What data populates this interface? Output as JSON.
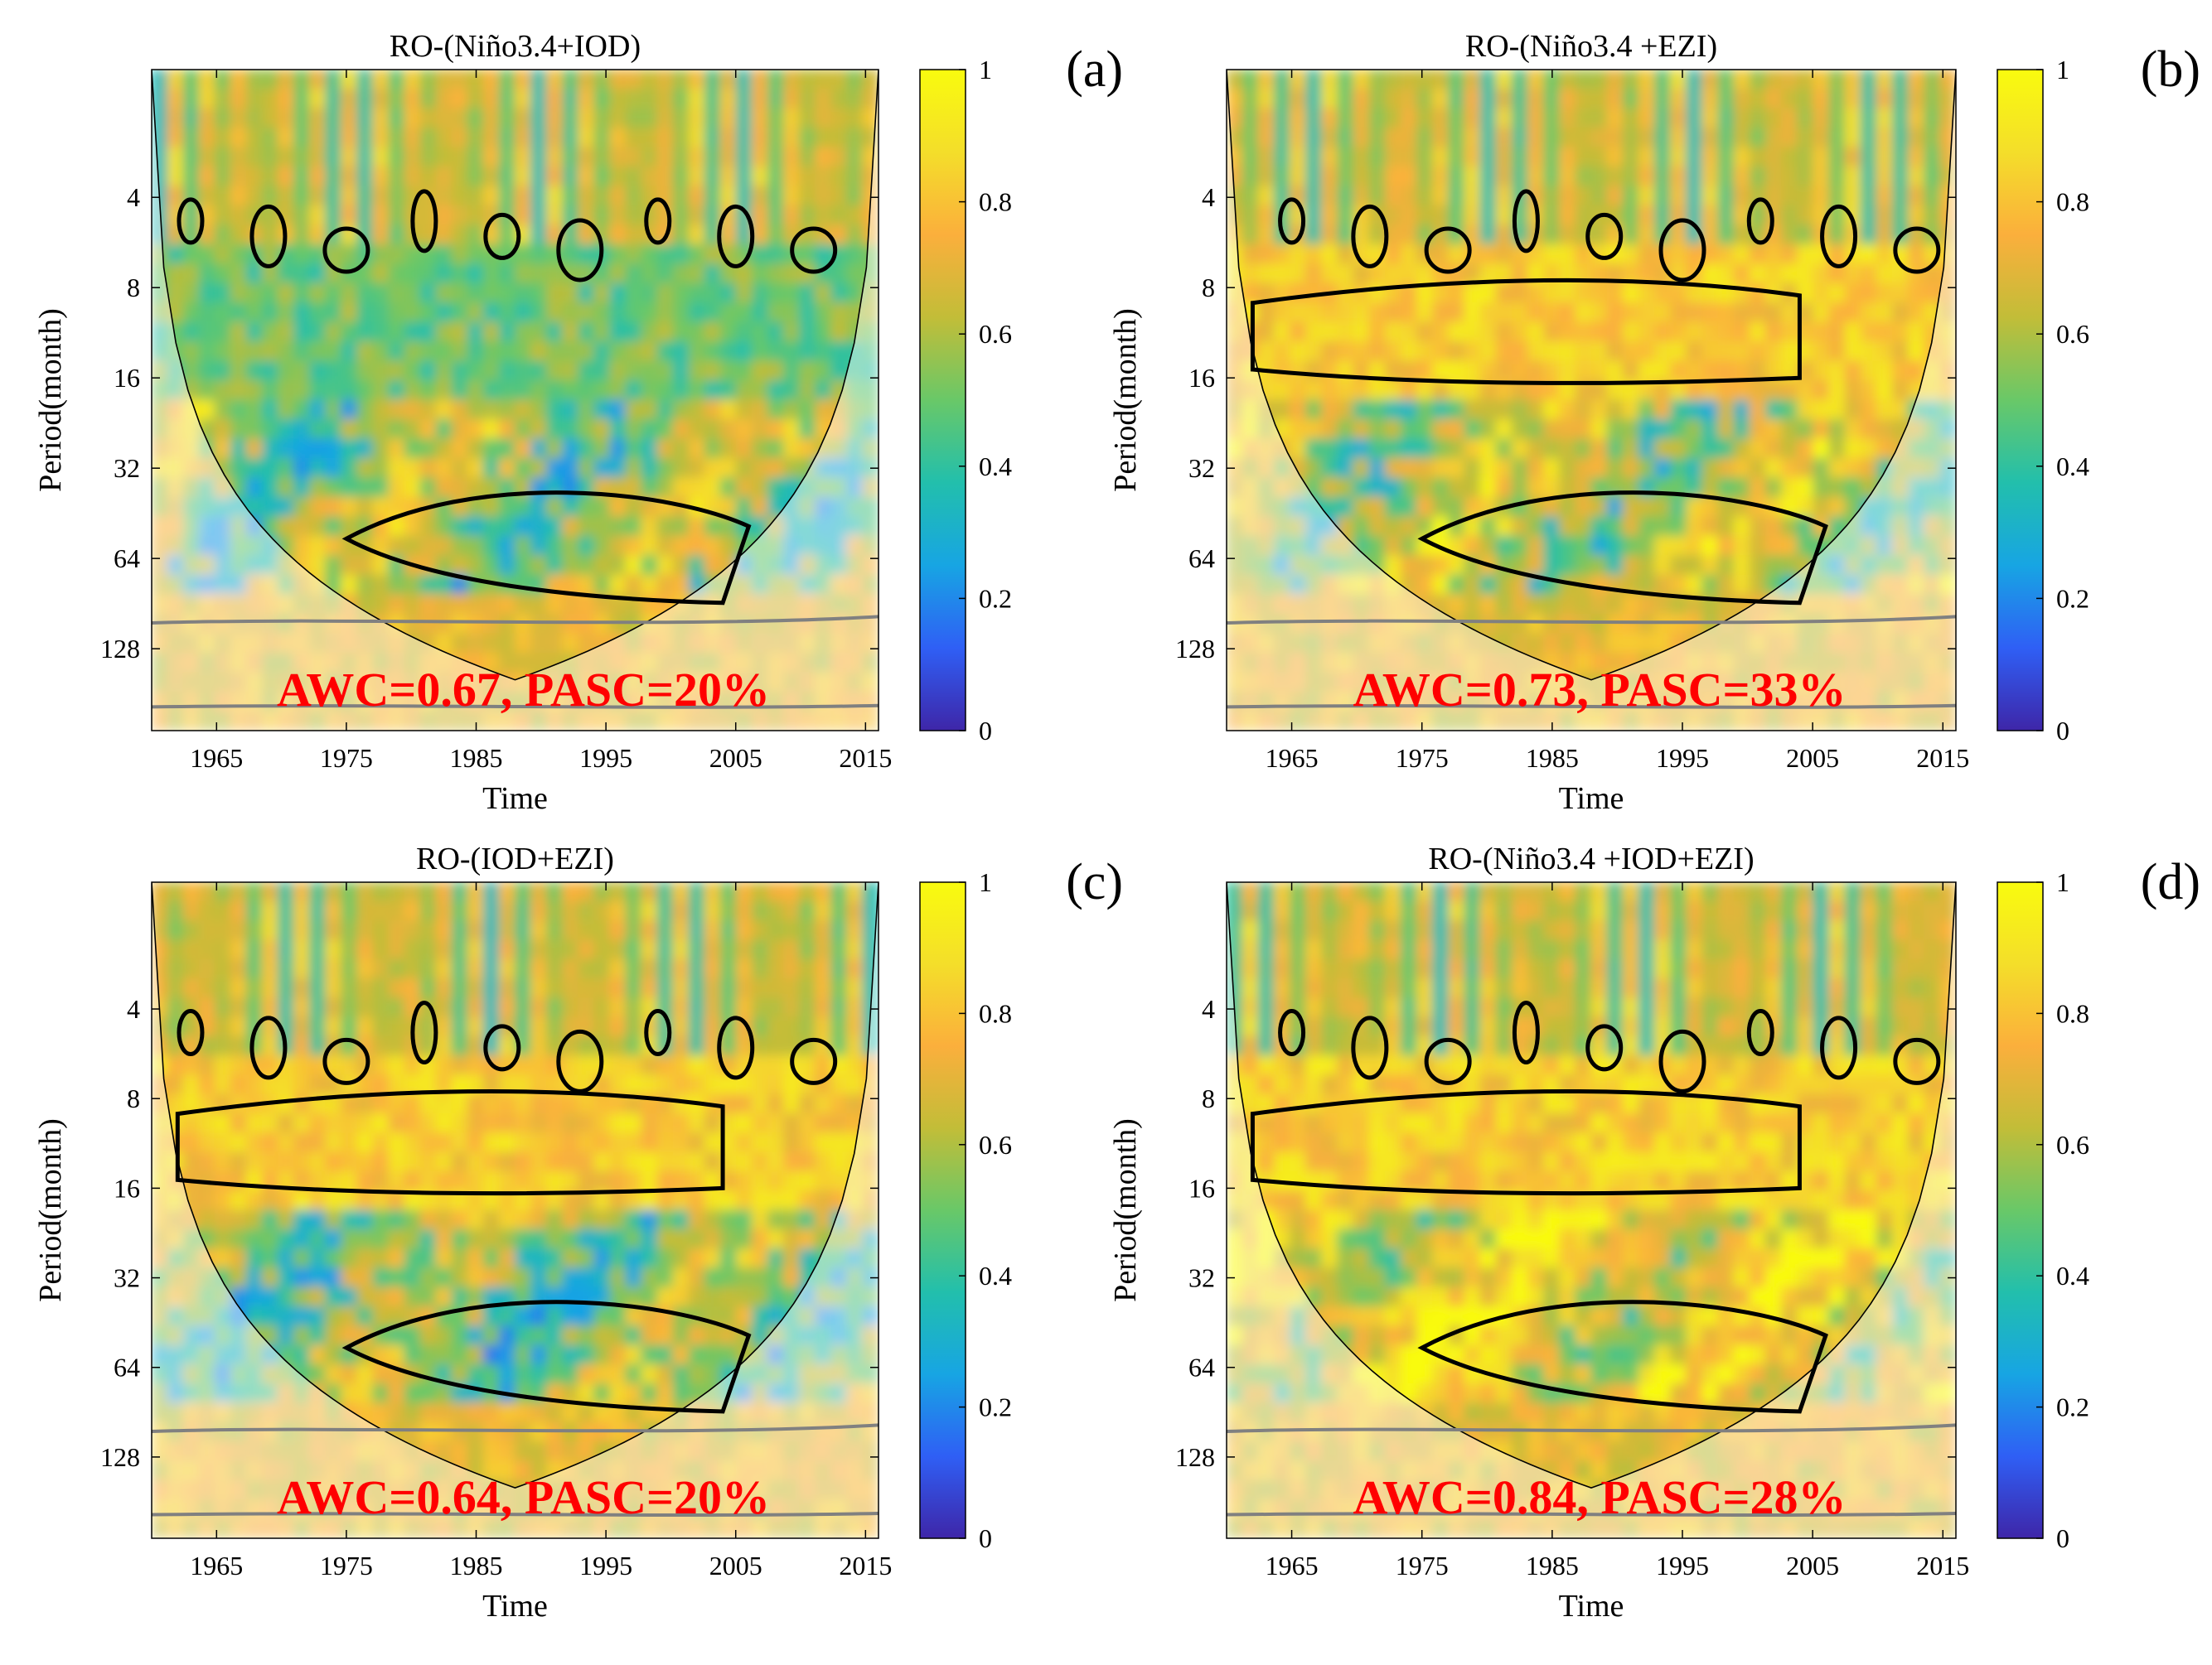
{
  "figure": {
    "colormap": [
      "#3e26a8",
      "#2f5ff5",
      "#17a5e3",
      "#22bfac",
      "#69c868",
      "#c2bd38",
      "#fbaf3c",
      "#f4de2a",
      "#f9fb0e"
    ],
    "stat_color": "#ff0000",
    "contour_color": "#000000",
    "cone_line_color": "#000000",
    "outside_cone_contour_color": "#808080"
  },
  "chart_data": [
    {
      "type": "heatmap",
      "panel_label": "(a)",
      "title": "RO-(Niño3.4+IOD)",
      "xlabel": "Time",
      "ylabel": "Period(month)",
      "xlim": [
        1960,
        2016
      ],
      "x_ticks": [
        "1965",
        "1975",
        "1985",
        "1995",
        "2005",
        "2015"
      ],
      "y_scale": "log2",
      "ylim": [
        1.5,
        240
      ],
      "y_ticks": [
        "4",
        "8",
        "16",
        "32",
        "64",
        "128"
      ],
      "colorbar": {
        "range": [
          0,
          1
        ],
        "ticks": [
          "0",
          "0.2",
          "0.4",
          "0.6",
          "0.8",
          "1"
        ]
      },
      "awc": 0.67,
      "pasc_percent": 20,
      "stat_text": "AWC=0.67, PASC=20%"
    },
    {
      "type": "heatmap",
      "panel_label": "(b)",
      "title": "RO-(Niño3.4 +EZI)",
      "xlabel": "Time",
      "ylabel": "Period(month)",
      "xlim": [
        1960,
        2016
      ],
      "x_ticks": [
        "1965",
        "1975",
        "1985",
        "1995",
        "2005",
        "2015"
      ],
      "y_scale": "log2",
      "ylim": [
        1.5,
        240
      ],
      "y_ticks": [
        "4",
        "8",
        "16",
        "32",
        "64",
        "128"
      ],
      "colorbar": {
        "range": [
          0,
          1
        ],
        "ticks": [
          "0",
          "0.2",
          "0.4",
          "0.6",
          "0.8",
          "1"
        ]
      },
      "awc": 0.73,
      "pasc_percent": 33,
      "stat_text": "AWC=0.73, PASC=33%"
    },
    {
      "type": "heatmap",
      "panel_label": "(c)",
      "title": "RO-(IOD+EZI)",
      "xlabel": "Time",
      "ylabel": "Period(month)",
      "xlim": [
        1960,
        2016
      ],
      "x_ticks": [
        "1965",
        "1975",
        "1985",
        "1995",
        "2005",
        "2015"
      ],
      "y_scale": "log2",
      "ylim": [
        1.5,
        240
      ],
      "y_ticks": [
        "4",
        "8",
        "16",
        "32",
        "64",
        "128"
      ],
      "colorbar": {
        "range": [
          0,
          1
        ],
        "ticks": [
          "0",
          "0.2",
          "0.4",
          "0.6",
          "0.8",
          "1"
        ]
      },
      "awc": 0.64,
      "pasc_percent": 20,
      "stat_text": "AWC=0.64, PASC=20%"
    },
    {
      "type": "heatmap",
      "panel_label": "(d)",
      "title": "RO-(Niño3.4 +IOD+EZI)",
      "xlabel": "Time",
      "ylabel": "Period(month)",
      "xlim": [
        1960,
        2016
      ],
      "x_ticks": [
        "1965",
        "1975",
        "1985",
        "1995",
        "2005",
        "2015"
      ],
      "y_scale": "log2",
      "ylim": [
        1.5,
        240
      ],
      "y_ticks": [
        "4",
        "8",
        "16",
        "32",
        "64",
        "128"
      ],
      "colorbar": {
        "range": [
          0,
          1
        ],
        "ticks": [
          "0",
          "0.2",
          "0.4",
          "0.6",
          "0.8",
          "1"
        ]
      },
      "awc": 0.84,
      "pasc_percent": 28,
      "stat_text": "AWC=0.84, PASC=28%"
    }
  ]
}
